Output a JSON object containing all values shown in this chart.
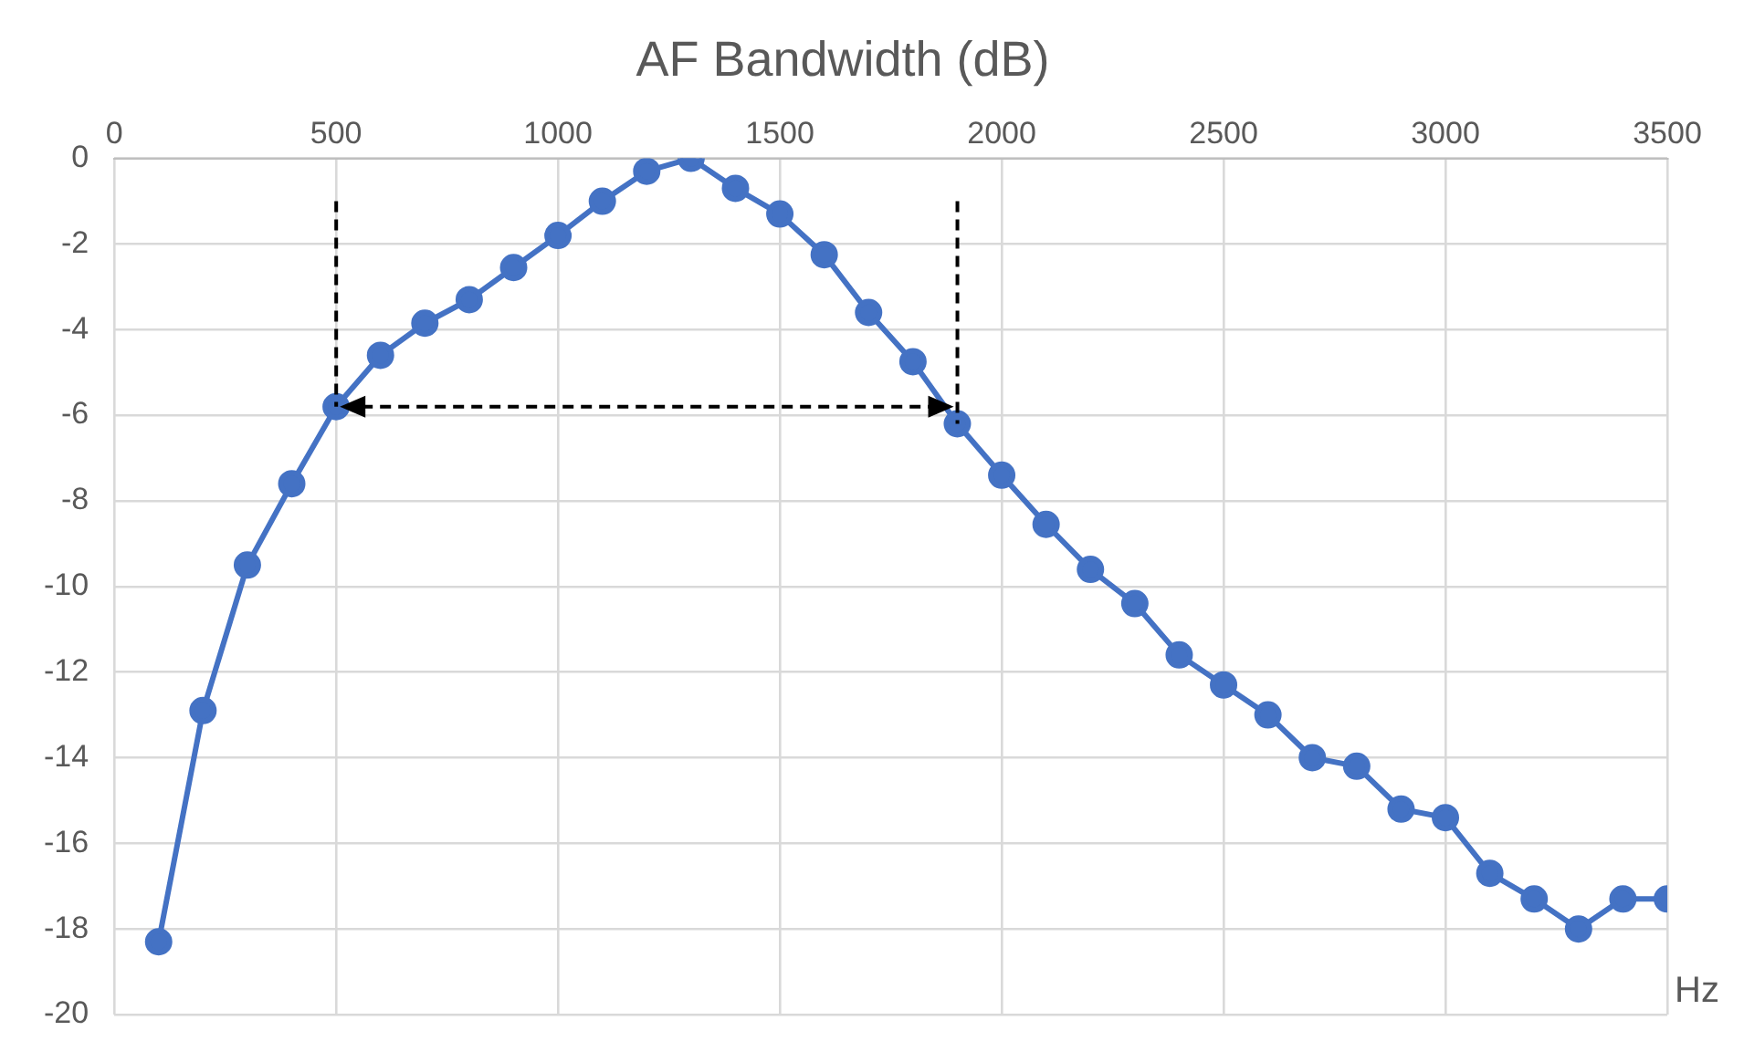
{
  "chart_data": {
    "type": "line",
    "title": "AF Bandwidth (dB)",
    "xlabel": "Hz",
    "x": [
      100,
      200,
      300,
      400,
      500,
      600,
      700,
      800,
      900,
      1000,
      1100,
      1200,
      1300,
      1400,
      1500,
      1600,
      1700,
      1800,
      1900,
      2000,
      2100,
      2200,
      2300,
      2400,
      2500,
      2600,
      2700,
      2800,
      2900,
      3000,
      3100,
      3200,
      3300,
      3400,
      3500
    ],
    "series": [
      {
        "color": "#4472c4",
        "values": [
          -18.3,
          -12.9,
          -9.5,
          -7.6,
          -5.8,
          -4.6,
          -3.85,
          -3.3,
          -2.55,
          -1.8,
          -1.0,
          -0.3,
          0,
          -0.7,
          -1.3,
          -2.25,
          -3.6,
          -4.75,
          -6.2,
          -7.4,
          -8.55,
          -9.6,
          -10.4,
          -11.6,
          -12.3,
          -13.0,
          -14.0,
          -14.2,
          -15.2,
          -15.4,
          -16.7,
          -17.3,
          -18.0,
          -17.3,
          -17.3
        ]
      }
    ],
    "xlim": [
      0,
      3500
    ],
    "xticks": [
      0,
      500,
      1000,
      1500,
      2000,
      2500,
      3000,
      3500
    ],
    "ylim": [
      -20,
      0
    ],
    "yticks": [
      0,
      -2,
      -4,
      -6,
      -8,
      -10,
      -12,
      -14,
      -16,
      -18,
      -20
    ],
    "grid": true,
    "legend": false,
    "marker": "circle",
    "line_style": "solid"
  }
}
